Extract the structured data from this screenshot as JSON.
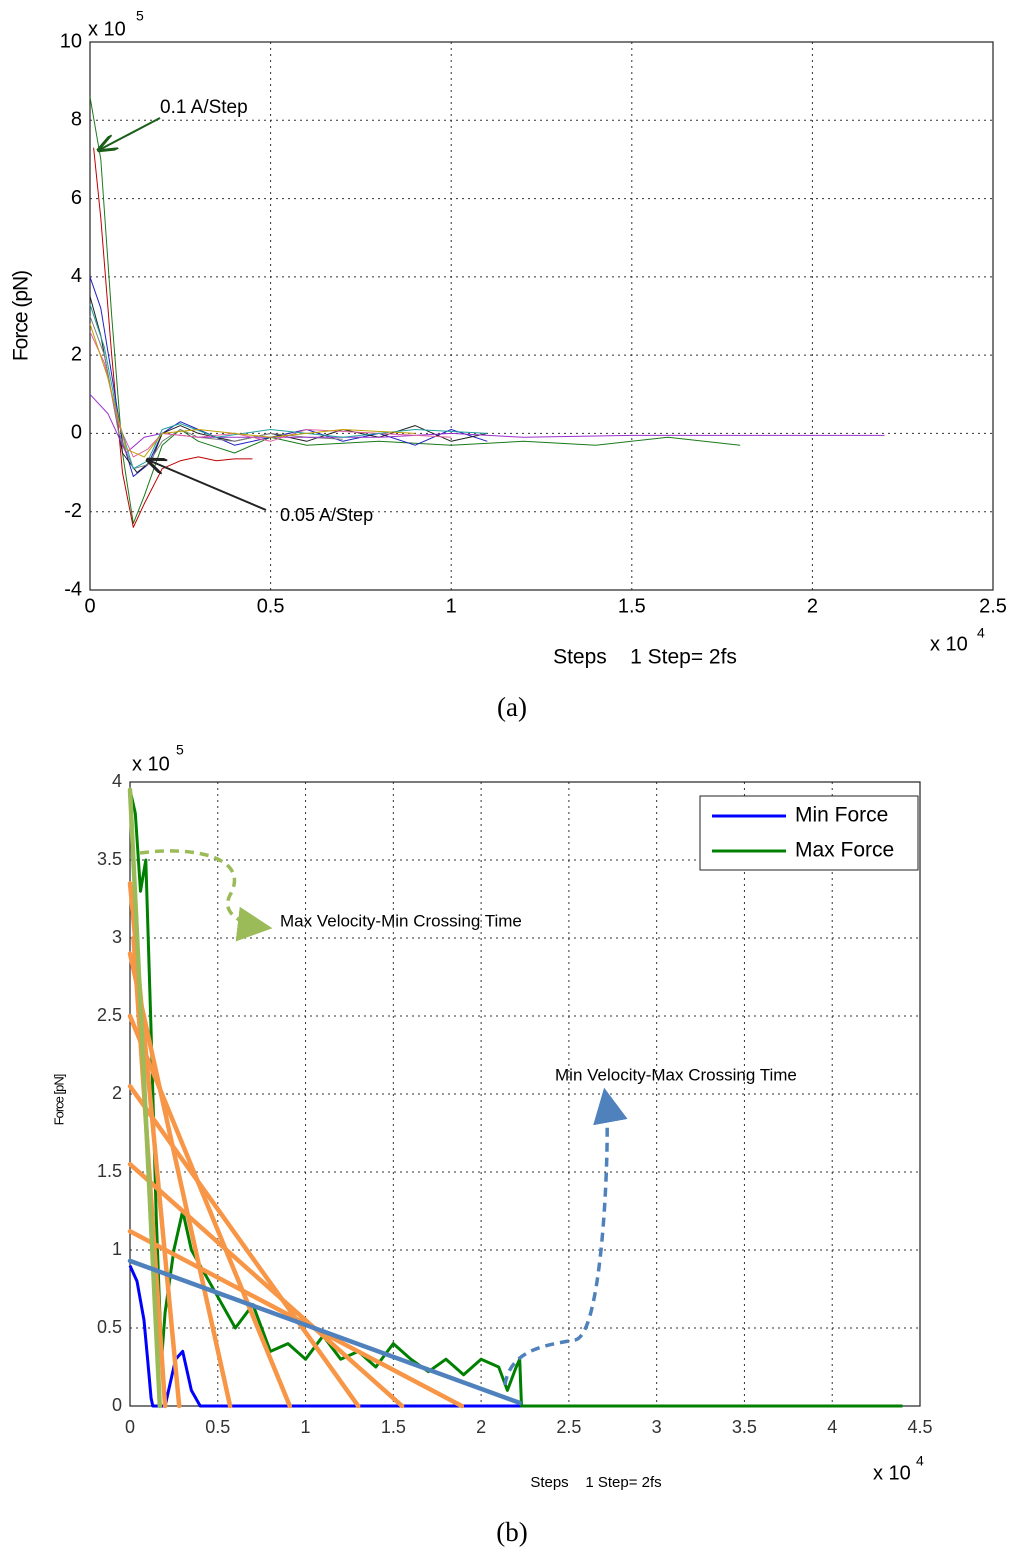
{
  "chart_data": [
    {
      "type": "line",
      "caption": "(a)",
      "ylabel": "Force (pN)",
      "xlabel": "Steps    1 Step= 2fs",
      "x_multiplier": {
        "text": "x 10",
        "exponent": "4"
      },
      "y_multiplier": {
        "text": "x 10",
        "exponent": "5"
      },
      "xlim": [
        0,
        2.5
      ],
      "ylim": [
        -4,
        10
      ],
      "xticks": [
        0,
        0.5,
        1,
        1.5,
        2,
        2.5
      ],
      "yticks": [
        -4,
        -2,
        0,
        2,
        4,
        6,
        8,
        10
      ],
      "grid": true,
      "annotations": [
        {
          "text": "0.1 A/Step"
        },
        {
          "text": "0.05 A/Step"
        }
      ],
      "series": [
        {
          "color": "#1a7a1a",
          "x": [
            0,
            0.03,
            0.06,
            0.09,
            0.12,
            0.15,
            0.2,
            0.25,
            0.3,
            0.4,
            0.5,
            0.6,
            0.8,
            1.0,
            1.2,
            1.4,
            1.6,
            1.8
          ],
          "values": [
            8.6,
            7,
            3,
            -0.5,
            -2.3,
            -1.6,
            -0.3,
            0.1,
            -0.2,
            -0.5,
            -0.1,
            -0.3,
            -0.2,
            -0.3,
            -0.2,
            -0.3,
            -0.1,
            -0.3
          ]
        },
        {
          "color": "#c00000",
          "x": [
            0.01,
            0.03,
            0.06,
            0.09,
            0.12,
            0.15,
            0.2,
            0.25,
            0.3,
            0.35,
            0.4,
            0.45
          ],
          "values": [
            7.3,
            5.5,
            2,
            -1,
            -2.4,
            -1.8,
            -0.9,
            -0.7,
            -0.6,
            -0.7,
            -0.65,
            -0.65
          ]
        },
        {
          "color": "#2020c0",
          "x": [
            0,
            0.03,
            0.06,
            0.09,
            0.12,
            0.16,
            0.2,
            0.25,
            0.3,
            0.4,
            0.5,
            0.6,
            0.7,
            0.8,
            0.9,
            1.0,
            1.1
          ],
          "values": [
            4,
            3.2,
            1.5,
            -0.2,
            -1.1,
            -0.8,
            0,
            0.3,
            0.1,
            -0.3,
            -0.1,
            0.1,
            -0.2,
            0,
            -0.3,
            0.1,
            -0.2
          ]
        },
        {
          "color": "#202020",
          "x": [
            0,
            0.03,
            0.06,
            0.09,
            0.13,
            0.17,
            0.2,
            0.25,
            0.3,
            0.4,
            0.5,
            0.6,
            0.7,
            0.8,
            0.9,
            1.0,
            1.1
          ],
          "values": [
            3.5,
            2.5,
            1,
            -0.5,
            -1,
            -0.7,
            0,
            0.2,
            0,
            -0.2,
            0,
            -0.2,
            0.1,
            -0.1,
            0.2,
            -0.2,
            0
          ]
        },
        {
          "color": "#808080",
          "x": [
            0,
            0.04,
            0.08,
            0.12,
            0.16,
            0.2,
            0.25,
            0.3,
            0.4,
            0.5,
            0.6,
            0.7
          ],
          "values": [
            3,
            2,
            0,
            -0.9,
            -0.8,
            -0.2,
            0.1,
            -0.1,
            -0.2,
            0,
            -0.1,
            -0.15
          ]
        },
        {
          "color": "#9932cc",
          "x": [
            0,
            0.05,
            0.1,
            0.15,
            0.2,
            0.3,
            0.5,
            0.8,
            1.0,
            1.2,
            1.5,
            1.8,
            2.0,
            2.2
          ],
          "values": [
            1,
            0.5,
            -0.5,
            -0.1,
            0,
            -0.1,
            -0.1,
            -0.1,
            0,
            -0.1,
            -0.05,
            -0.05,
            -0.05,
            -0.05
          ]
        },
        {
          "color": "#e060a0",
          "x": [
            0,
            0.04,
            0.08,
            0.12,
            0.16,
            0.2,
            0.3,
            0.4,
            0.5,
            0.6,
            0.8,
            1.0
          ],
          "values": [
            2.6,
            1.8,
            0.2,
            -0.6,
            -0.4,
            0,
            -0.1,
            0,
            -0.2,
            0.1,
            0,
            -0.1
          ]
        },
        {
          "color": "#20a0a0",
          "x": [
            0,
            0.04,
            0.08,
            0.12,
            0.16,
            0.2,
            0.25,
            0.35,
            0.5,
            0.7,
            0.9,
            1.1
          ],
          "values": [
            3.3,
            2.2,
            0.3,
            -0.9,
            -0.7,
            0.1,
            0.25,
            -0.1,
            0.1,
            -0.1,
            0.1,
            0
          ]
        },
        {
          "color": "#c0a000",
          "x": [
            0,
            0.05,
            0.1,
            0.15,
            0.2,
            0.3,
            0.5,
            0.7,
            0.9
          ],
          "values": [
            2.8,
            1.4,
            -0.4,
            -0.6,
            0,
            0.1,
            -0.1,
            0.1,
            0
          ]
        }
      ]
    },
    {
      "type": "line",
      "caption": "(b)",
      "ylabel": "Force [pN]",
      "xlabel": "Steps    1 Step= 2fs",
      "x_multiplier": {
        "text": "x 10",
        "exponent": "4"
      },
      "y_multiplier": {
        "text": "x 10",
        "exponent": "5"
      },
      "xlim": [
        0,
        4.5
      ],
      "ylim": [
        0,
        4
      ],
      "xticks": [
        0,
        0.5,
        1,
        1.5,
        2,
        2.5,
        3,
        3.5,
        4,
        4.5
      ],
      "yticks": [
        0,
        0.5,
        1,
        1.5,
        2,
        2.5,
        3,
        3.5,
        4
      ],
      "grid": true,
      "legend": "upper right",
      "annotations": [
        {
          "text": "Max Velocity-Min Crossing Time"
        },
        {
          "text": "Min Velocity-Max Crossing Time"
        }
      ],
      "series": [
        {
          "name": "Min Force",
          "color": "#0000ff",
          "x": [
            0,
            0.04,
            0.08,
            0.1,
            0.12,
            0.13,
            0.2,
            0.26,
            0.3,
            0.35,
            0.4,
            1,
            2.23,
            4.4
          ],
          "values": [
            0.9,
            0.8,
            0.55,
            0.3,
            0.05,
            0,
            0,
            0.3,
            0.35,
            0.1,
            0,
            0,
            0,
            0
          ]
        },
        {
          "name": "Max Force",
          "color": "#008000",
          "x": [
            0,
            0.03,
            0.06,
            0.09,
            0.12,
            0.15,
            0.18,
            0.2,
            0.25,
            0.3,
            0.35,
            0.4,
            0.5,
            0.6,
            0.7,
            0.8,
            0.9,
            1.0,
            1.1,
            1.2,
            1.3,
            1.4,
            1.5,
            1.6,
            1.7,
            1.8,
            1.9,
            2.0,
            2.1,
            2.15,
            2.2,
            2.22,
            2.23,
            3,
            4.4
          ],
          "values": [
            3.95,
            3.8,
            3.3,
            3.5,
            2.4,
            1.2,
            0.3,
            0.6,
            1.0,
            1.25,
            1.0,
            0.9,
            0.7,
            0.5,
            0.65,
            0.35,
            0.4,
            0.3,
            0.45,
            0.3,
            0.35,
            0.25,
            0.4,
            0.3,
            0.22,
            0.3,
            0.2,
            0.3,
            0.25,
            0.1,
            0.25,
            0.3,
            0,
            0,
            0
          ]
        }
      ],
      "lines": [
        {
          "color": "#f79646",
          "x": [
            0,
            0.28
          ],
          "values": [
            3.35,
            0
          ]
        },
        {
          "color": "#f79646",
          "x": [
            0.02,
            0.2
          ],
          "values": [
            3.0,
            0
          ]
        },
        {
          "color": "#f79646",
          "x": [
            0,
            0.57
          ],
          "values": [
            2.9,
            0
          ]
        },
        {
          "color": "#f79646",
          "x": [
            0,
            0.91
          ],
          "values": [
            2.5,
            0
          ]
        },
        {
          "color": "#f79646",
          "x": [
            0,
            1.3
          ],
          "values": [
            2.05,
            0
          ]
        },
        {
          "color": "#f79646",
          "x": [
            0,
            1.55
          ],
          "values": [
            1.55,
            0
          ]
        },
        {
          "color": "#f79646",
          "x": [
            0,
            1.89
          ],
          "values": [
            1.12,
            0
          ]
        },
        {
          "color": "#9bbb59",
          "x": [
            0,
            0.17
          ],
          "values": [
            3.95,
            0
          ]
        },
        {
          "color": "#4f81bd",
          "x": [
            0,
            2.22
          ],
          "values": [
            0.93,
            0.02
          ]
        }
      ]
    }
  ]
}
